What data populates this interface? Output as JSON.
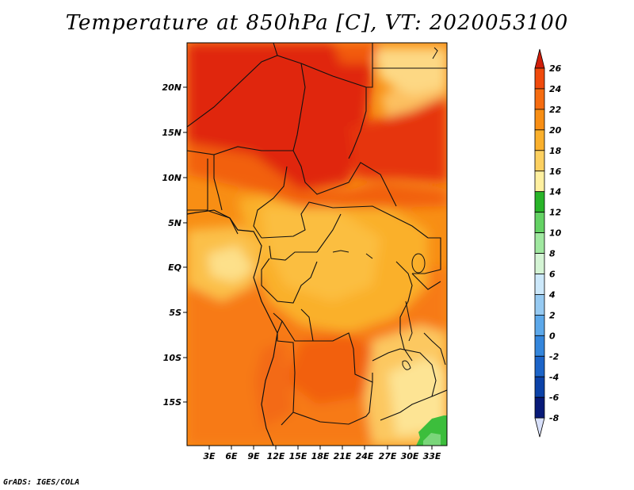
{
  "title": "Temperature at 850hPa [C], VT: 2020053100",
  "credit": "GrADS: IGES/COLA",
  "map": {
    "lat_labels": [
      "20N",
      "15N",
      "10N",
      "5N",
      "EQ",
      "5S",
      "10S",
      "15S"
    ],
    "lon_labels": [
      "3E",
      "6E",
      "9E",
      "12E",
      "15E",
      "18E",
      "21E",
      "24E",
      "27E",
      "30E",
      "33E"
    ]
  },
  "colorbar": {
    "labels": [
      "26",
      "24",
      "22",
      "20",
      "18",
      "16",
      "14",
      "12",
      "10",
      "8",
      "6",
      "4",
      "2",
      "0",
      "-2",
      "-4",
      "-6",
      "-8"
    ],
    "colors": [
      "#e8280a",
      "#f04a0c",
      "#f66c10",
      "#f88e14",
      "#fab02c",
      "#fcd060",
      "#fff0a0",
      "#28b428",
      "#64d264",
      "#a0e8a0",
      "#d4f4d4",
      "#cce8fa",
      "#96caf2",
      "#5ca8ea",
      "#3486dc",
      "#1c64c8",
      "#0c42a8",
      "#081a78"
    ],
    "top_color": "#d01e0a",
    "bottom_color": "#d8e0fa"
  }
}
